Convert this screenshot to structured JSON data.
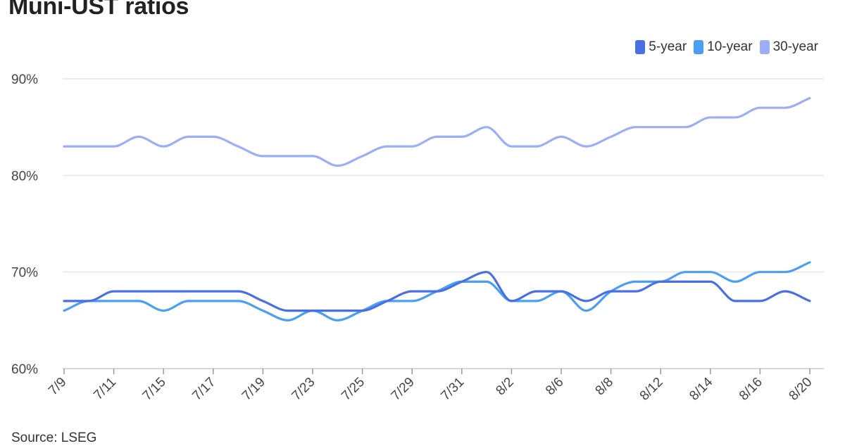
{
  "chart_data": {
    "type": "line",
    "title": "Muni-UST ratios",
    "source": "Source: LSEG",
    "ylim": [
      60,
      90
    ],
    "y_ticks": [
      "60%",
      "70%",
      "80%",
      "90%"
    ],
    "y_tick_values": [
      60,
      70,
      80,
      90
    ],
    "grid": true,
    "legend_position": "top-right",
    "x": [
      "7/9",
      "7/10",
      "7/11",
      "7/12",
      "7/15",
      "7/16",
      "7/17",
      "7/18",
      "7/19",
      "7/22",
      "7/23",
      "7/24",
      "7/25",
      "7/26",
      "7/29",
      "7/30",
      "7/31",
      "8/1",
      "8/2",
      "8/5",
      "8/6",
      "8/7",
      "8/8",
      "8/9",
      "8/12",
      "8/13",
      "8/14",
      "8/15",
      "8/16",
      "8/19",
      "8/20"
    ],
    "x_tick_labels": [
      "7/9",
      "7/11",
      "7/15",
      "7/17",
      "7/19",
      "7/23",
      "7/25",
      "7/29",
      "7/31",
      "8/2",
      "8/6",
      "8/8",
      "8/12",
      "8/14",
      "8/16",
      "8/20"
    ],
    "series": [
      {
        "name": "5-year",
        "color": "#4a6fe3",
        "values": [
          67,
          67,
          68,
          68,
          68,
          68,
          68,
          68,
          67,
          66,
          66,
          66,
          66,
          67,
          68,
          68,
          69,
          70,
          67,
          68,
          68,
          67,
          68,
          68,
          69,
          69,
          69,
          67,
          67,
          68,
          67
        ]
      },
      {
        "name": "10-year",
        "color": "#4a9ff0",
        "values": [
          66,
          67,
          67,
          67,
          66,
          67,
          67,
          67,
          66,
          65,
          66,
          65,
          66,
          67,
          67,
          68,
          69,
          69,
          67,
          67,
          68,
          66,
          68,
          69,
          69,
          70,
          70,
          69,
          70,
          70,
          71
        ]
      },
      {
        "name": "30-year",
        "color": "#9baef6",
        "values": [
          83,
          83,
          83,
          84,
          83,
          84,
          84,
          83,
          82,
          82,
          82,
          81,
          82,
          83,
          83,
          84,
          84,
          85,
          83,
          83,
          84,
          83,
          84,
          85,
          85,
          85,
          86,
          86,
          87,
          87,
          88
        ]
      }
    ]
  }
}
